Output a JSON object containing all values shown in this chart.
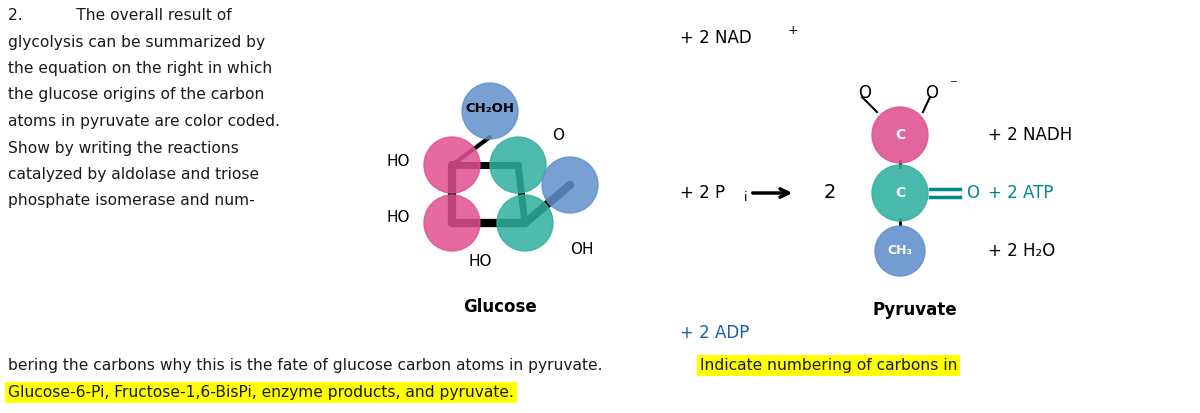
{
  "bg_color": "#ffffff",
  "text_color_black": "#1a1a1a",
  "text_color_blue": "#1a5fa8",
  "text_color_teal": "#008888",
  "highlight_yellow": "#ffff00",
  "circle_pink": "#e05090",
  "circle_teal": "#30b0a0",
  "circle_blue": "#6090cc",
  "left_text_lines": [
    "2.           The overall result of",
    "glycolysis can be summarized by",
    "the equation on the right in which",
    "the glucose origins of the carbon",
    "atoms in pyruvate are color coded.",
    "Show by writing the reactions",
    "catalyzed by aldolase and triose",
    "phosphate isomerase and num-"
  ],
  "bottom_line1": "bering the carbons why this is the fate of glucose carbon atoms in pyruvate.",
  "bottom_highlight1": "Indicate numbering of carbons in",
  "bottom_line2": "Glucose-6-Pi, Fructose-1,6-BisPi, enzyme products, and pyruvate.",
  "glucose_label": "Glucose",
  "pyruvate_label": "Pyruvate"
}
